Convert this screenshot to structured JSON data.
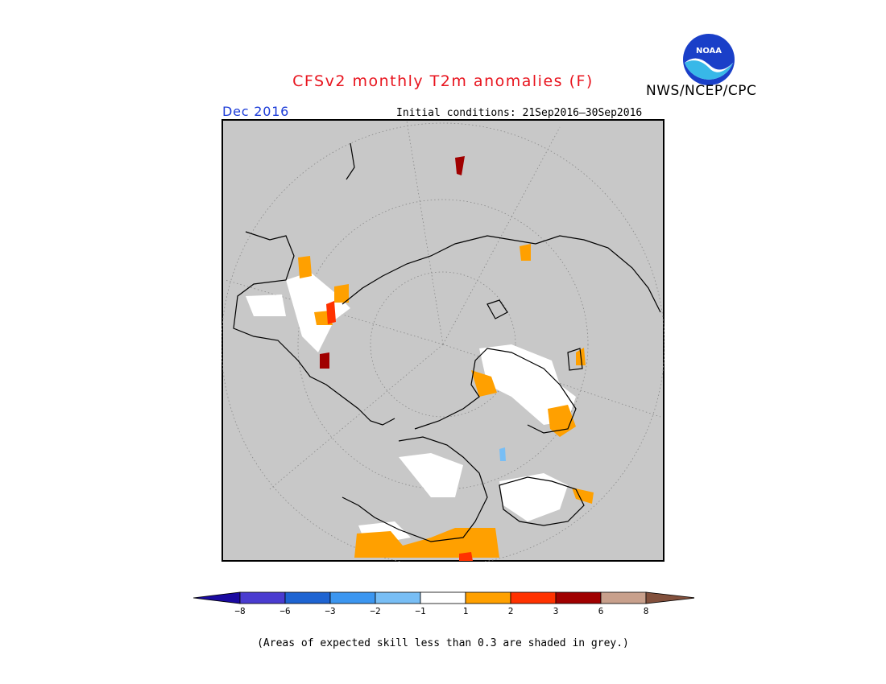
{
  "header": {
    "title": "CFSv2 monthly T2m anomalies (F)",
    "agency": "NWS/NCEP/CPC",
    "logo_text": "NOAA",
    "valid_month": "Dec 2016",
    "initial_conditions": "Initial conditions: 21Sep2016–30Sep2016"
  },
  "map": {
    "projection": "north polar stereographic",
    "background_color": "#c8c8c8",
    "border_color": "#000000"
  },
  "legend": {
    "tick_labels": [
      "−8",
      "−6",
      "−3",
      "−2",
      "−1",
      "1",
      "2",
      "3",
      "6",
      "8"
    ],
    "bins": [
      {
        "color": "#1a0aa0"
      },
      {
        "color": "#4a3cd0"
      },
      {
        "color": "#1e64d2"
      },
      {
        "color": "#3c96f0"
      },
      {
        "color": "#78bef5"
      },
      {
        "color": "#ffffff"
      },
      {
        "color": "#ffa000"
      },
      {
        "color": "#ff3200"
      },
      {
        "color": "#a00000"
      },
      {
        "color": "#c8a08c"
      },
      {
        "color": "#82503c"
      }
    ]
  },
  "footnote": "(Areas of expected skill less than 0.3 are shaded in grey.)"
}
